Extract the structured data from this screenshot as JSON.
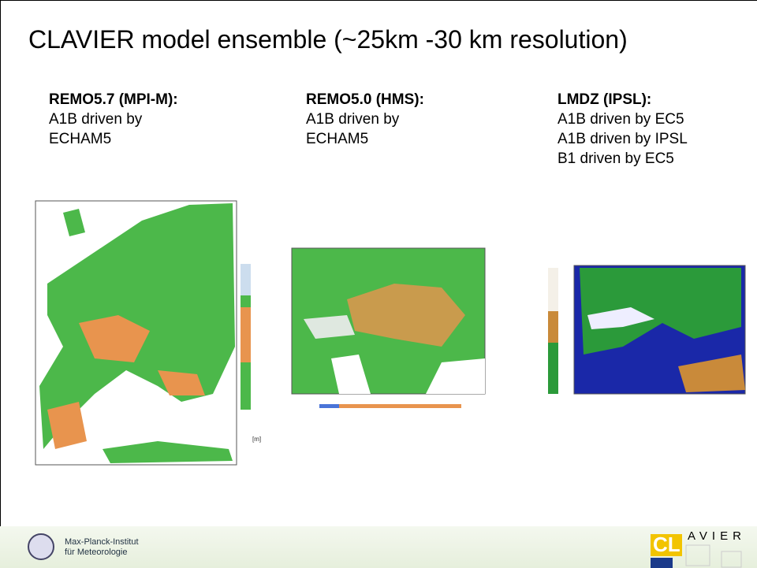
{
  "slide": {
    "title": "CLAVIER model ensemble (~25km -30 km resolution)",
    "columns": [
      {
        "heading": "REMO5.7 (MPI-M):",
        "lines": [
          "A1B driven by",
          "ECHAM5"
        ]
      },
      {
        "heading": "REMO5.0 (HMS):",
        "lines": [
          "A1B driven by",
          "ECHAM5"
        ]
      },
      {
        "heading": "LMDZ (IPSL):",
        "lines": [
          "A1B driven by EC5",
          "A1B driven by IPSL",
          "B1 driven by EC5"
        ]
      }
    ],
    "map_unit": "[m]",
    "footer": {
      "institute": [
        "Max-Planck-Institut",
        "für Meteorologie"
      ],
      "logo": [
        "CL",
        "AVIER"
      ]
    }
  }
}
